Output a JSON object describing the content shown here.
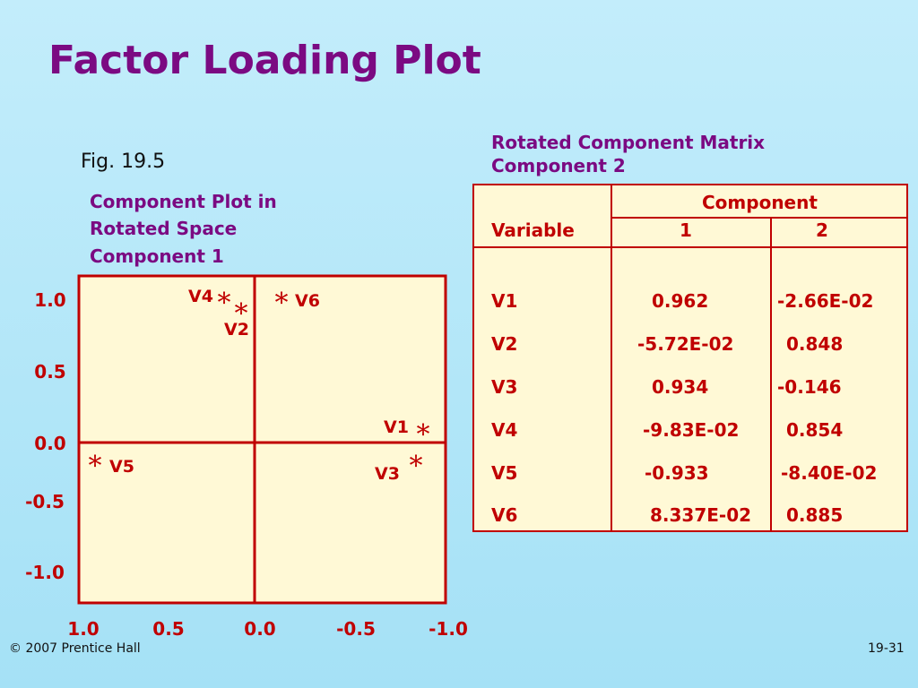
{
  "slide": {
    "title": "Factor Loading Plot",
    "fig_label": "Fig. 19.5",
    "plot_caption_lines": [
      "Component Plot in",
      "Rotated Space",
      "Component 1"
    ],
    "table_caption_lines": [
      "Rotated Component Matrix",
      "Component 2"
    ],
    "footer_left": "© 2007 Prentice Hall",
    "footer_right": "19-31"
  },
  "colors": {
    "title": "#7b0a82",
    "marks": "#c00000",
    "panel": "#fff9d6",
    "background": "#b5e6f8"
  },
  "chart_data": [
    {
      "type": "scatter",
      "title": "Component Plot in Rotated Space",
      "ylabel": "Component 1",
      "xlim": [
        1.0,
        -1.0
      ],
      "ylim": [
        -1.0,
        1.0
      ],
      "x_ticks": [
        "1.0",
        "0.5",
        "0.0",
        "-0.5",
        "-1.0"
      ],
      "y_ticks": [
        "1.0",
        "0.5",
        "0.0",
        "-0.5",
        "-1.0"
      ],
      "marker": "*",
      "points": [
        {
          "label": "V1",
          "x": -0.9,
          "y": 0.1
        },
        {
          "label": "V2",
          "x": 0.15,
          "y": 0.95
        },
        {
          "label": "V3",
          "x": -0.85,
          "y": -0.15
        },
        {
          "label": "V4",
          "x": 0.2,
          "y": 0.98
        },
        {
          "label": "V5",
          "x": 0.9,
          "y": -0.15
        },
        {
          "label": "V6",
          "x": -0.15,
          "y": 1.0
        }
      ]
    },
    {
      "type": "table",
      "title": "Rotated Component Matrix",
      "group_header": "Component",
      "columns": [
        "Variable",
        "1",
        "2"
      ],
      "rows": [
        [
          "V1",
          "0.962",
          "-2.66E-02"
        ],
        [
          "V2",
          "-5.72E-02",
          "0.848"
        ],
        [
          "V3",
          "0.934",
          "-0.146"
        ],
        [
          "V4",
          "-9.83E-02",
          "0.854"
        ],
        [
          "V5",
          "-0.933",
          "-8.40E-02"
        ],
        [
          "V6",
          "8.337E-02",
          "0.885"
        ]
      ]
    }
  ]
}
